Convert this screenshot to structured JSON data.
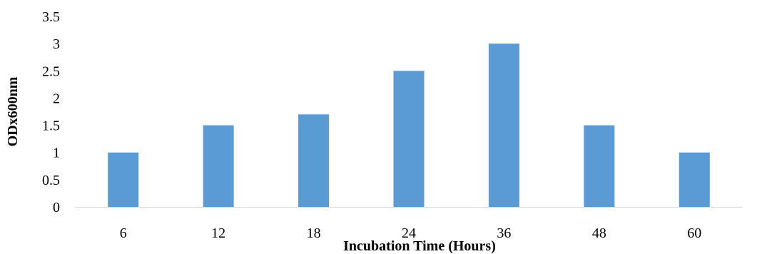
{
  "chart_data": {
    "type": "bar",
    "title": "",
    "xlabel": "Incubation Time (Hours)",
    "ylabel": "ODx600nm",
    "categories": [
      "6",
      "12",
      "18",
      "24",
      "36",
      "48",
      "60"
    ],
    "values": [
      1,
      1.5,
      1.7,
      2.5,
      3,
      1.5,
      1
    ],
    "ylim": [
      0,
      3.5
    ],
    "yticks": [
      "0",
      "0.5",
      "1",
      "1.5",
      "2",
      "2.5",
      "3",
      "3.5"
    ],
    "grid": false,
    "legend": "none",
    "bar_color": "#5B9BD5",
    "axis_color": "#D9D9D9"
  }
}
